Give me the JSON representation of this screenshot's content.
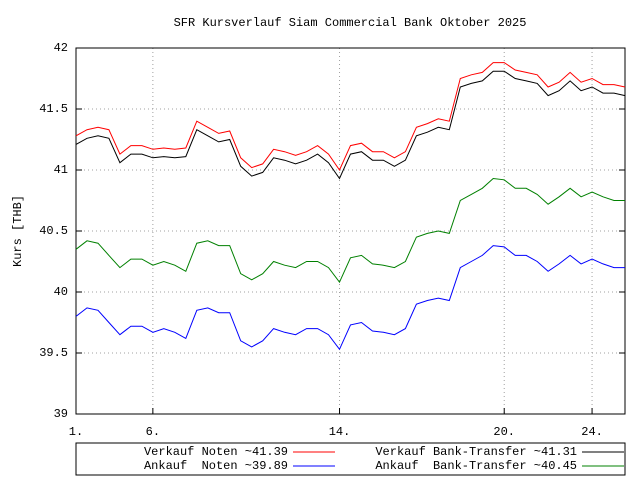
{
  "chart_data": {
    "type": "line",
    "title": "SFR Kursverlauf Siam Commercial Bank Oktober 2025",
    "y_label": "Kurs [THB]",
    "categories": [
      "1.",
      null,
      null,
      null,
      null,
      null,
      null,
      "6.",
      null,
      null,
      null,
      null,
      null,
      null,
      null,
      null,
      null,
      null,
      null,
      null,
      null,
      null,
      null,
      null,
      "14.",
      null,
      null,
      null,
      null,
      null,
      null,
      null,
      null,
      null,
      null,
      null,
      null,
      null,
      null,
      "20.",
      null,
      null,
      null,
      null,
      null,
      null,
      null,
      "24.",
      null,
      null,
      null
    ],
    "ylim": [
      39,
      42
    ],
    "yticks": [
      39,
      39.5,
      40,
      40.5,
      41,
      41.5,
      42
    ],
    "grid": true,
    "series": [
      {
        "name": "Verkauf Noten ~41.39",
        "color": "#ff0000",
        "values": [
          41.28,
          41.33,
          41.35,
          41.33,
          41.13,
          41.2,
          41.2,
          41.17,
          41.18,
          41.17,
          41.18,
          41.4,
          41.35,
          41.3,
          41.32,
          41.1,
          41.02,
          41.05,
          41.17,
          41.15,
          41.12,
          41.15,
          41.2,
          41.13,
          41.0,
          41.2,
          41.22,
          41.15,
          41.15,
          41.1,
          41.15,
          41.35,
          41.38,
          41.42,
          41.4,
          41.75,
          41.78,
          41.8,
          41.88,
          41.88,
          41.82,
          41.8,
          41.78,
          41.68,
          41.72,
          41.8,
          41.72,
          41.75,
          41.7,
          41.7,
          41.68
        ]
      },
      {
        "name": "Verkauf Bank-Transfer ~41.31",
        "color": "#000000",
        "values": [
          41.21,
          41.26,
          41.28,
          41.26,
          41.06,
          41.13,
          41.13,
          41.1,
          41.11,
          41.1,
          41.11,
          41.33,
          41.28,
          41.23,
          41.25,
          41.03,
          40.95,
          40.98,
          41.1,
          41.08,
          41.05,
          41.08,
          41.13,
          41.06,
          40.93,
          41.13,
          41.15,
          41.08,
          41.08,
          41.03,
          41.08,
          41.28,
          41.31,
          41.35,
          41.33,
          41.68,
          41.71,
          41.73,
          41.81,
          41.81,
          41.75,
          41.73,
          41.71,
          41.61,
          41.65,
          41.73,
          41.65,
          41.68,
          41.63,
          41.63,
          41.61
        ]
      },
      {
        "name": "Ankauf  Noten ~39.89",
        "color": "#0000ff",
        "values": [
          39.8,
          39.87,
          39.85,
          39.75,
          39.65,
          39.72,
          39.72,
          39.67,
          39.7,
          39.67,
          39.62,
          39.85,
          39.87,
          39.83,
          39.83,
          39.6,
          39.55,
          39.6,
          39.7,
          39.67,
          39.65,
          39.7,
          39.7,
          39.65,
          39.53,
          39.73,
          39.75,
          39.68,
          39.67,
          39.65,
          39.7,
          39.9,
          39.93,
          39.95,
          39.93,
          40.2,
          40.25,
          40.3,
          40.38,
          40.37,
          40.3,
          40.3,
          40.25,
          40.17,
          40.23,
          40.3,
          40.23,
          40.27,
          40.23,
          40.2,
          40.2
        ]
      },
      {
        "name": "Ankauf  Bank-Transfer ~40.45",
        "color": "#008000",
        "values": [
          40.35,
          40.42,
          40.4,
          40.3,
          40.2,
          40.27,
          40.27,
          40.22,
          40.25,
          40.22,
          40.17,
          40.4,
          40.42,
          40.38,
          40.38,
          40.15,
          40.1,
          40.15,
          40.25,
          40.22,
          40.2,
          40.25,
          40.25,
          40.2,
          40.08,
          40.28,
          40.3,
          40.23,
          40.22,
          40.2,
          40.25,
          40.45,
          40.48,
          40.5,
          40.48,
          40.75,
          40.8,
          40.85,
          40.93,
          40.92,
          40.85,
          40.85,
          40.8,
          40.72,
          40.78,
          40.85,
          40.78,
          40.82,
          40.78,
          40.75,
          40.75
        ]
      }
    ]
  }
}
